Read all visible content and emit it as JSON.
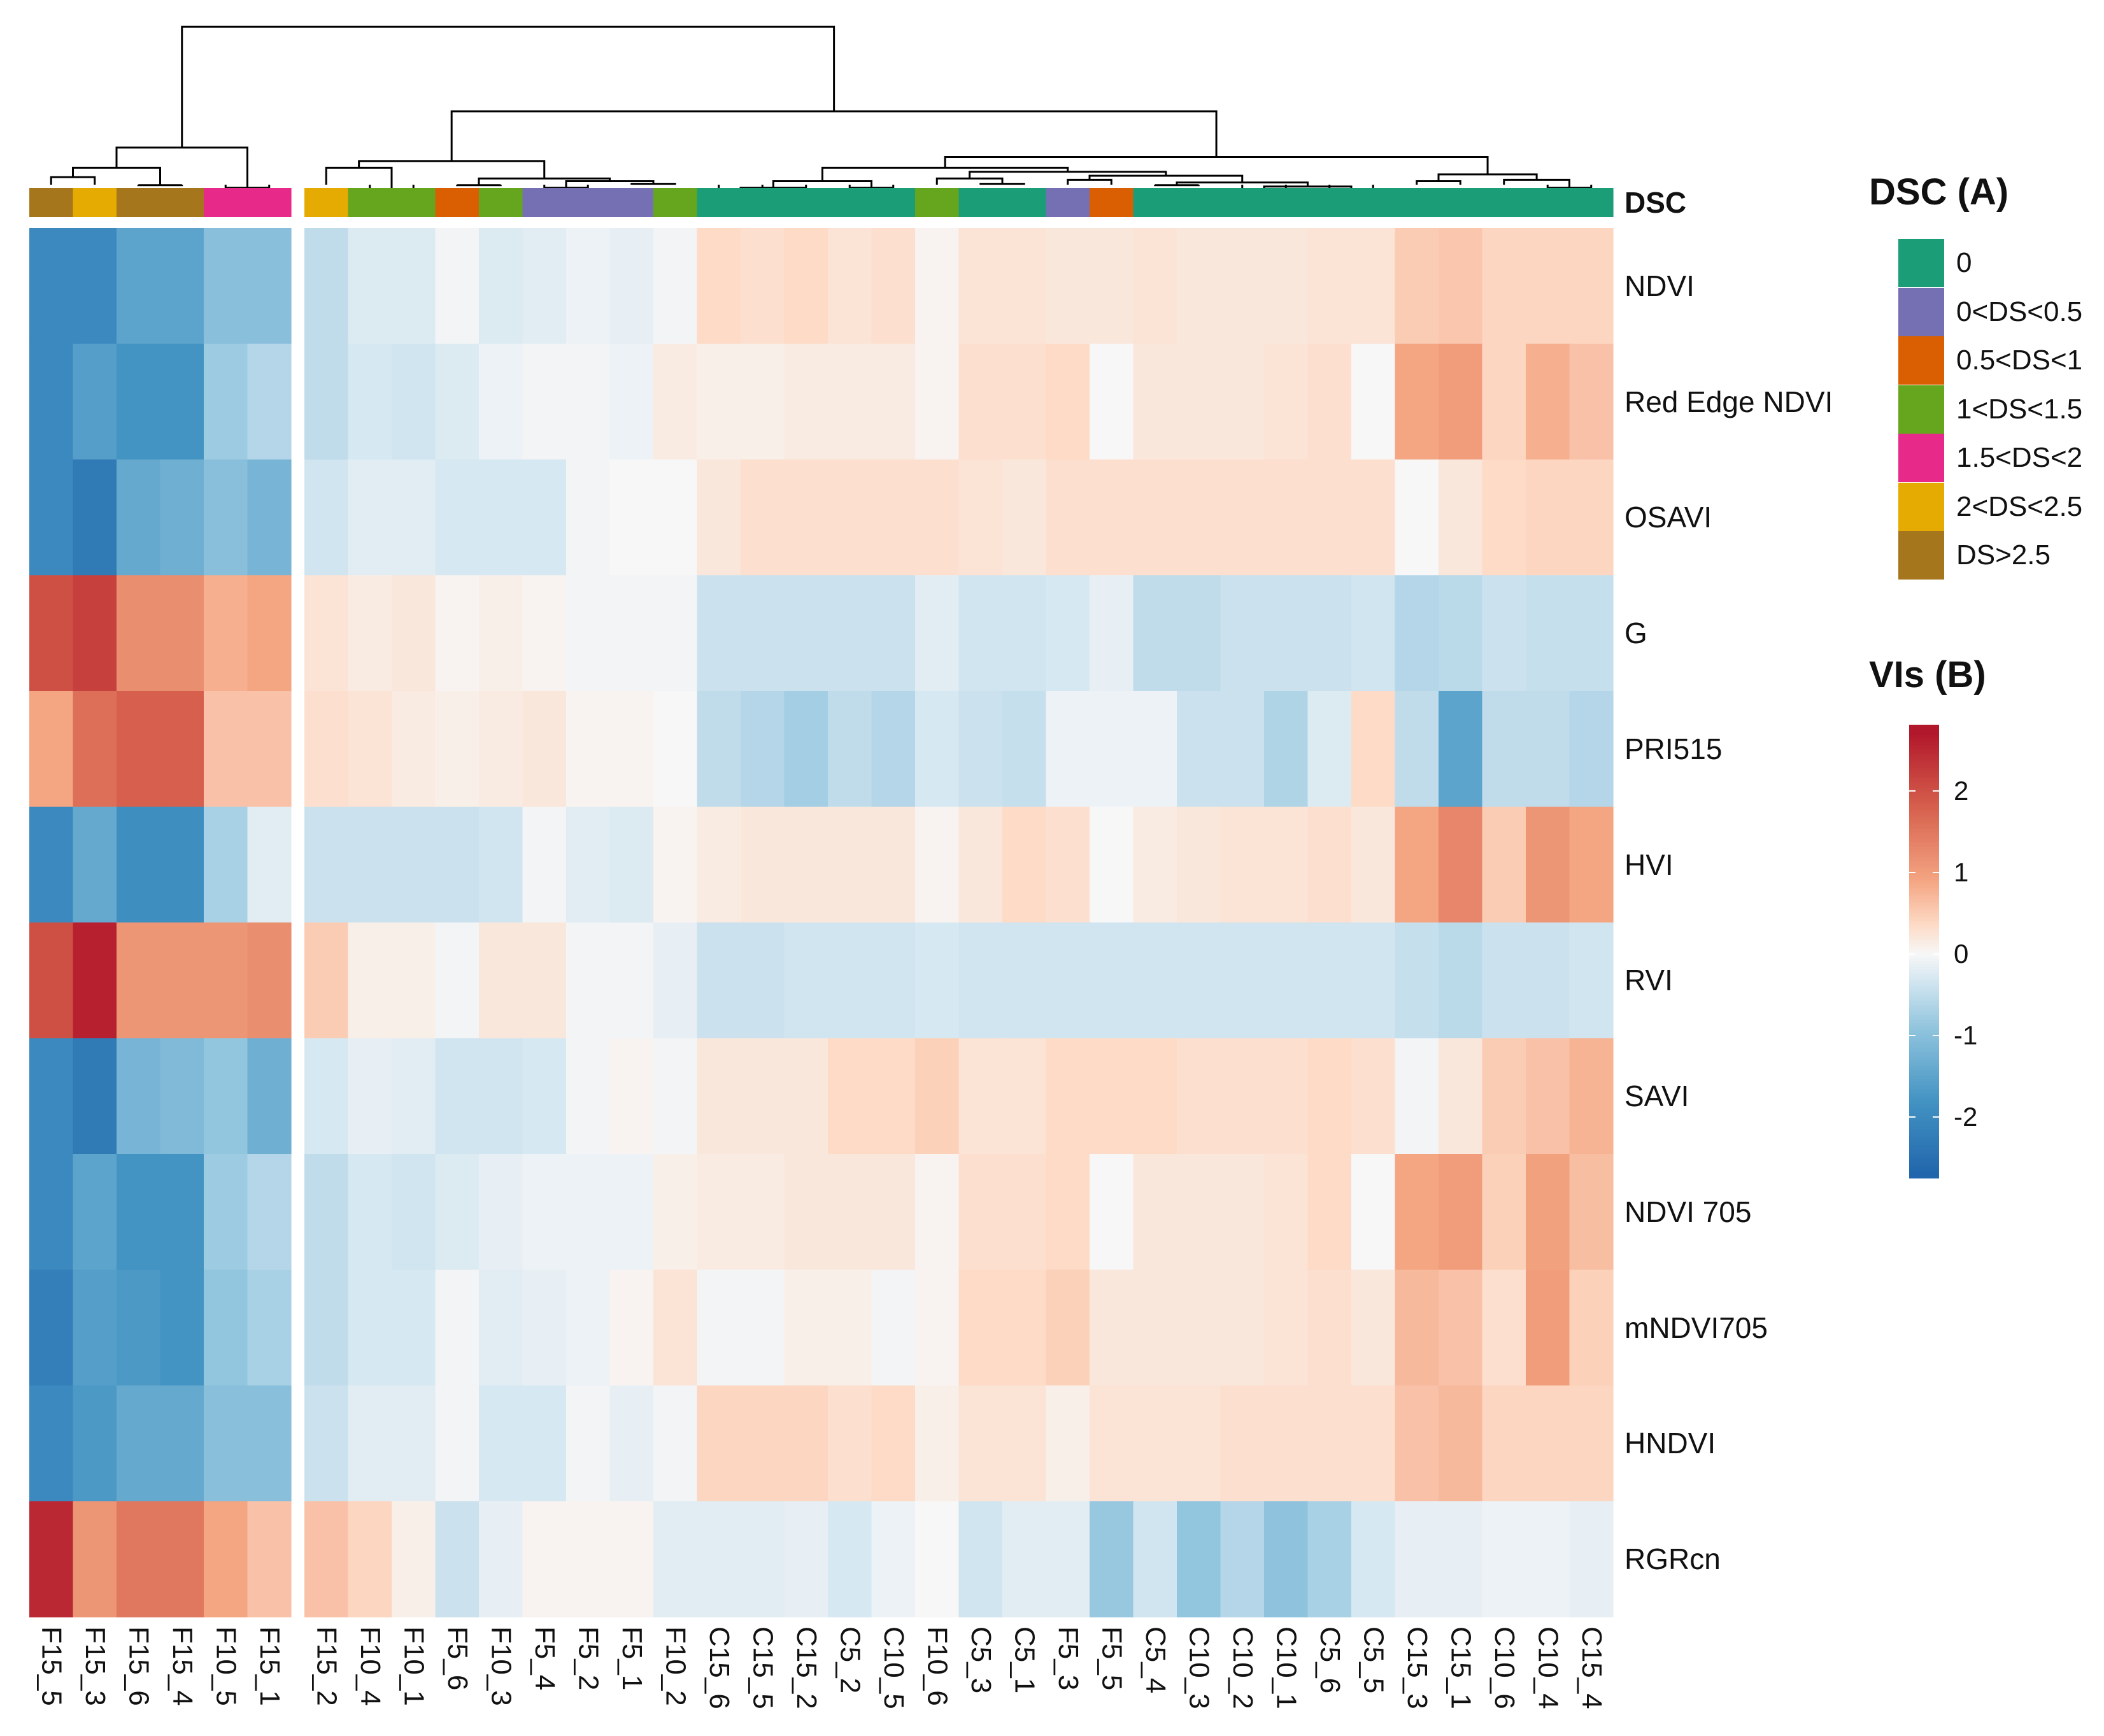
{
  "chart_data": {
    "type": "heatmap",
    "title": "",
    "columns": [
      "F15_5",
      "F15_3",
      "F15_6",
      "F15_4",
      "F10_5",
      "F15_1",
      "F15_2",
      "F10_4",
      "F10_1",
      "F5_6",
      "F10_3",
      "F5_4",
      "F5_2",
      "F5_1",
      "F10_2",
      "C15_6",
      "C15_5",
      "C15_2",
      "C5_2",
      "C10_5",
      "F10_6",
      "C5_3",
      "C5_1",
      "F5_3",
      "F5_5",
      "C5_4",
      "C10_3",
      "C10_2",
      "C10_1",
      "C5_6",
      "C5_5",
      "C15_3",
      "C15_1",
      "C10_6",
      "C10_4",
      "C15_4"
    ],
    "column_annotation_label": "DSC",
    "column_annotation": [
      "DS>2.5",
      "2<DS<2.5",
      "DS>2.5",
      "DS>2.5",
      "1.5<DS<2",
      "1.5<DS<2",
      "2<DS<2.5",
      "1<DS<1.5",
      "1<DS<1.5",
      "0.5<DS<1",
      "1<DS<1.5",
      "0<DS<0.5",
      "0<DS<0.5",
      "0<DS<0.5",
      "1<DS<1.5",
      "0",
      "0",
      "0",
      "0",
      "0",
      "1<DS<1.5",
      "0",
      "0",
      "0<DS<0.5",
      "0.5<DS<1",
      "0",
      "0",
      "0",
      "0",
      "0",
      "0",
      "0",
      "0",
      "0",
      "0",
      "0"
    ],
    "rows": [
      "NDVI",
      "Red Edge NDVI",
      "OSAVI",
      "G",
      "PRI515",
      "HVI",
      "RVI",
      "SAVI",
      "NDVI 705",
      "mNDVI705",
      "HNDVI",
      "RGRcn"
    ],
    "values": [
      [
        -2.0,
        -2.0,
        -1.5,
        -1.5,
        -1.0,
        -1.0,
        -0.5,
        -0.25,
        -0.25,
        -0.05,
        -0.25,
        -0.2,
        -0.1,
        -0.15,
        -0.05,
        0.35,
        0.3,
        0.35,
        0.25,
        0.3,
        0.05,
        0.25,
        0.25,
        0.2,
        0.2,
        0.25,
        0.2,
        0.2,
        0.2,
        0.25,
        0.25,
        0.5,
        0.55,
        0.4,
        0.4,
        0.4
      ],
      [
        -2.0,
        -1.6,
        -1.8,
        -1.8,
        -0.8,
        -0.6,
        -0.5,
        -0.3,
        -0.35,
        -0.25,
        -0.1,
        -0.05,
        -0.05,
        -0.1,
        0.15,
        0.1,
        0.1,
        0.15,
        0.15,
        0.15,
        0.05,
        0.3,
        0.3,
        0.35,
        0.0,
        0.2,
        0.2,
        0.2,
        0.25,
        0.3,
        0.0,
        0.9,
        1.0,
        0.4,
        0.8,
        0.6
      ],
      [
        -2.0,
        -2.3,
        -1.4,
        -1.3,
        -1.0,
        -1.2,
        -0.35,
        -0.2,
        -0.2,
        -0.3,
        -0.3,
        -0.3,
        -0.05,
        0.0,
        0.0,
        0.2,
        0.3,
        0.3,
        0.3,
        0.3,
        0.3,
        0.25,
        0.2,
        0.3,
        0.3,
        0.3,
        0.3,
        0.3,
        0.3,
        0.3,
        0.3,
        0.0,
        0.2,
        0.35,
        0.4,
        0.4
      ],
      [
        2.0,
        2.2,
        1.2,
        1.2,
        0.8,
        0.9,
        0.25,
        0.15,
        0.2,
        0.05,
        0.1,
        0.05,
        -0.05,
        -0.05,
        -0.05,
        -0.4,
        -0.4,
        -0.4,
        -0.4,
        -0.4,
        -0.2,
        -0.35,
        -0.35,
        -0.3,
        -0.15,
        -0.5,
        -0.5,
        -0.4,
        -0.4,
        -0.4,
        -0.35,
        -0.6,
        -0.55,
        -0.4,
        -0.45,
        -0.45
      ],
      [
        0.9,
        1.6,
        1.8,
        1.8,
        0.6,
        0.6,
        0.3,
        0.25,
        0.15,
        0.1,
        0.15,
        0.2,
        0.05,
        0.05,
        0.0,
        -0.5,
        -0.6,
        -0.75,
        -0.5,
        -0.6,
        -0.3,
        -0.4,
        -0.45,
        -0.1,
        -0.1,
        -0.1,
        -0.4,
        -0.4,
        -0.65,
        -0.25,
        0.35,
        -0.5,
        -1.5,
        -0.5,
        -0.5,
        -0.6
      ],
      [
        -2.0,
        -1.4,
        -1.9,
        -1.9,
        -0.7,
        -0.2,
        -0.4,
        -0.4,
        -0.4,
        -0.4,
        -0.35,
        -0.05,
        -0.2,
        -0.25,
        0.05,
        0.15,
        0.2,
        0.2,
        0.2,
        0.2,
        0.05,
        0.2,
        0.35,
        0.3,
        0.0,
        0.15,
        0.2,
        0.25,
        0.25,
        0.3,
        0.2,
        0.9,
        1.3,
        0.5,
        1.1,
        0.9
      ],
      [
        2.0,
        2.6,
        1.1,
        1.1,
        1.1,
        1.2,
        0.5,
        0.1,
        0.1,
        -0.05,
        0.2,
        0.2,
        -0.05,
        -0.05,
        -0.15,
        -0.4,
        -0.4,
        -0.35,
        -0.35,
        -0.35,
        -0.3,
        -0.35,
        -0.35,
        -0.35,
        -0.35,
        -0.35,
        -0.35,
        -0.35,
        -0.35,
        -0.35,
        -0.35,
        -0.45,
        -0.55,
        -0.4,
        -0.4,
        -0.35
      ],
      [
        -2.0,
        -2.3,
        -1.2,
        -1.1,
        -0.9,
        -1.3,
        -0.3,
        -0.15,
        -0.2,
        -0.35,
        -0.35,
        -0.3,
        -0.05,
        0.05,
        -0.05,
        0.2,
        0.2,
        0.2,
        0.35,
        0.35,
        0.45,
        0.25,
        0.25,
        0.35,
        0.35,
        0.35,
        0.3,
        0.3,
        0.3,
        0.35,
        0.3,
        -0.05,
        0.2,
        0.5,
        0.6,
        0.75
      ],
      [
        -2.0,
        -1.5,
        -1.8,
        -1.8,
        -0.8,
        -0.6,
        -0.5,
        -0.3,
        -0.35,
        -0.25,
        -0.15,
        -0.1,
        -0.1,
        -0.1,
        0.1,
        0.15,
        0.15,
        0.2,
        0.2,
        0.2,
        0.05,
        0.3,
        0.3,
        0.35,
        0.0,
        0.2,
        0.2,
        0.2,
        0.25,
        0.35,
        0.0,
        0.9,
        1.0,
        0.45,
        0.95,
        0.65
      ],
      [
        -2.2,
        -1.6,
        -1.7,
        -1.8,
        -0.9,
        -0.7,
        -0.5,
        -0.3,
        -0.3,
        -0.05,
        -0.2,
        -0.15,
        -0.1,
        0.05,
        0.25,
        -0.05,
        -0.05,
        0.1,
        0.1,
        -0.05,
        0.05,
        0.35,
        0.35,
        0.45,
        0.2,
        0.2,
        0.2,
        0.2,
        0.25,
        0.3,
        0.2,
        0.7,
        0.6,
        0.3,
        1.0,
        0.45
      ],
      [
        -2.0,
        -1.7,
        -1.4,
        -1.4,
        -1.0,
        -1.0,
        -0.4,
        -0.2,
        -0.2,
        -0.05,
        -0.3,
        -0.3,
        -0.05,
        -0.15,
        -0.05,
        0.4,
        0.4,
        0.4,
        0.3,
        0.35,
        0.1,
        0.25,
        0.25,
        0.1,
        0.25,
        0.25,
        0.25,
        0.3,
        0.3,
        0.3,
        0.3,
        0.6,
        0.7,
        0.4,
        0.4,
        0.4
      ],
      [
        2.5,
        1.1,
        1.5,
        1.5,
        0.9,
        0.6,
        0.6,
        0.4,
        0.1,
        -0.4,
        -0.15,
        0.05,
        0.05,
        0.05,
        -0.2,
        -0.2,
        -0.2,
        -0.15,
        -0.3,
        -0.1,
        0.0,
        -0.35,
        -0.2,
        -0.2,
        -0.85,
        -0.35,
        -0.9,
        -0.6,
        -0.95,
        -0.7,
        -0.3,
        -0.15,
        -0.15,
        -0.1,
        -0.1,
        -0.15
      ]
    ],
    "column_split_after": 6,
    "dendrogram": "columns",
    "color_scale": {
      "min": -2.7,
      "max": 2.7,
      "low": "#2166ac",
      "mid": "#f7f7f7",
      "high": "#b2182b"
    }
  },
  "legend_dsc": {
    "title": "DSC (A)",
    "items": [
      {
        "label": "0",
        "color": "#1b9e77"
      },
      {
        "label": "0<DS<0.5",
        "color": "#7570b3"
      },
      {
        "label": "0.5<DS<1",
        "color": "#d95f02"
      },
      {
        "label": "1<DS<1.5",
        "color": "#66a61e"
      },
      {
        "label": "1.5<DS<2",
        "color": "#e7298a"
      },
      {
        "label": "2<DS<2.5",
        "color": "#e6ab02"
      },
      {
        "label": "DS>2.5",
        "color": "#a6761d"
      }
    ]
  },
  "legend_vis": {
    "title": "VIs (B)",
    "ticks": [
      "2",
      "1",
      "0",
      "-1",
      "-2"
    ],
    "tick_values": [
      2,
      1,
      0,
      -1,
      -2
    ]
  }
}
